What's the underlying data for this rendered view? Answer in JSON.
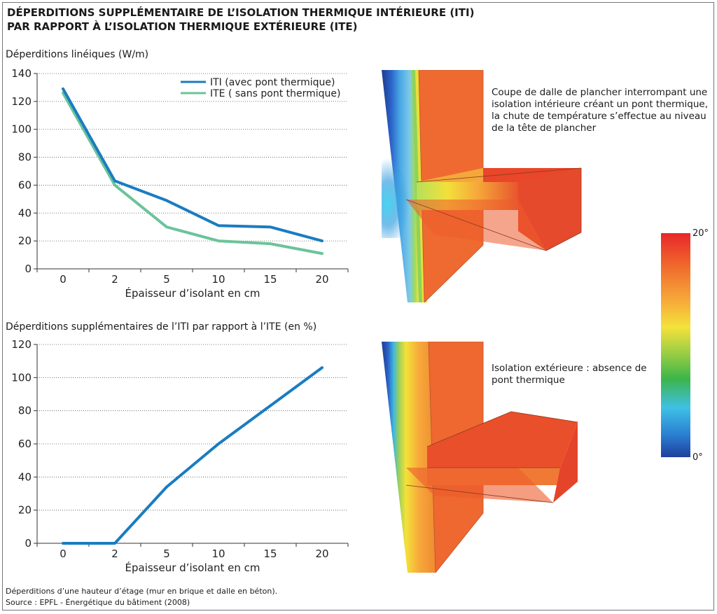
{
  "title_line1": "DÉPERDITIONS SUPPLÉMENTAIRE DE L’ISOLATION THERMIQUE INTÉRIEURE (ITI)",
  "title_line2": "PAR RAPPORT À L’ISOLATION THERMIQUE EXTÉRIEURE (ITE)",
  "chart_data": [
    {
      "type": "line",
      "ylabel": "Déperditions linéiques (W/m)",
      "xlabel": "Épaisseur d’isolant en cm",
      "categories": [
        "0",
        "2",
        "5",
        "10",
        "15",
        "20"
      ],
      "ylim": [
        0,
        140
      ],
      "yticks": [
        0,
        20,
        40,
        60,
        80,
        100,
        120,
        140
      ],
      "grid": true,
      "legend": "top-right",
      "series": [
        {
          "name": "ITI (avec pont thermique)",
          "color": "#1a7cc1",
          "values": [
            129,
            63,
            49,
            31,
            30,
            20
          ]
        },
        {
          "name": "ITE ( sans pont thermique)",
          "color": "#6cc39a",
          "values": [
            126,
            60,
            30,
            20,
            18,
            11
          ]
        }
      ]
    },
    {
      "type": "line",
      "ylabel": "Déperditions supplémentaires de l’ITI par rapport à l’ITE (en %)",
      "xlabel": "Épaisseur d’isolant en cm",
      "categories": [
        "0",
        "2",
        "5",
        "10",
        "15",
        "20"
      ],
      "ylim": [
        0,
        120
      ],
      "yticks": [
        0,
        20,
        40,
        60,
        80,
        100,
        120
      ],
      "grid": true,
      "series": [
        {
          "color": "#1a7cc1",
          "values": [
            0,
            0,
            34,
            60,
            83,
            106
          ]
        }
      ]
    }
  ],
  "caption_top": "Coupe de dalle de plancher interrompant une isolation intérieure créant un pont thermique, la chute de température s’effectue au niveau de la tête de plancher",
  "caption_bottom": "Isolation extérieure : absence de pont thermique",
  "scale_max": "20°",
  "scale_min": "0°",
  "footnote_line1": "Déperditions d’une hauteur d’étage (mur en brique et dalle en béton).",
  "footnote_line2": "Source : EPFL - Énergétique du bâtiment (2008)"
}
